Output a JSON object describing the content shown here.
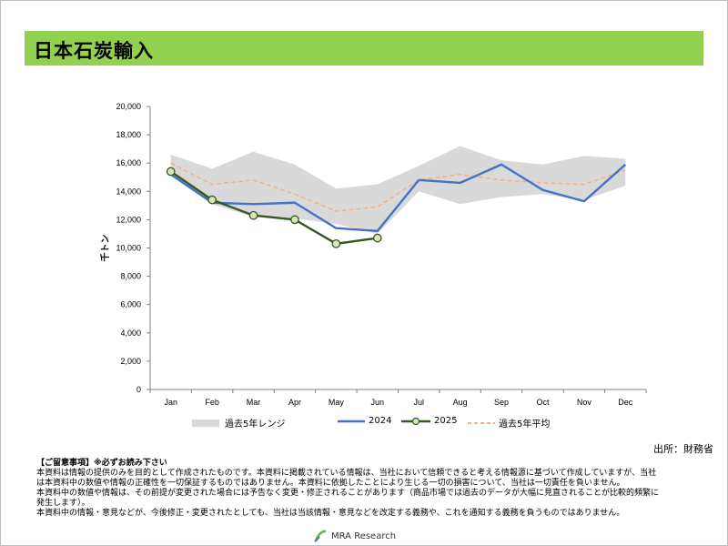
{
  "title": "日本石炭輸入",
  "source": "出所：財務省",
  "chart_data": {
    "type": "line",
    "categories": [
      "Jan",
      "Feb",
      "Mar",
      "Apr",
      "May",
      "Jun",
      "Jul",
      "Aug",
      "Sep",
      "Oct",
      "Nov",
      "Dec"
    ],
    "ylabel": "千トン",
    "ylim": [
      0,
      20000
    ],
    "yticks": [
      "0",
      "2,000",
      "4,000",
      "6,000",
      "8,000",
      "10,000",
      "12,000",
      "14,000",
      "16,000",
      "18,000",
      "20,000"
    ],
    "range_band": {
      "name": "過去5年レンジ",
      "color": "#d9d9d9",
      "min": [
        15100,
        13100,
        12200,
        12100,
        11700,
        11000,
        14000,
        13100,
        13600,
        13800,
        13400,
        14400
      ],
      "max": [
        16600,
        15600,
        16800,
        15900,
        14200,
        14500,
        15800,
        17200,
        16200,
        15900,
        16500,
        16300
      ]
    },
    "series": [
      {
        "name": "2024",
        "color": "#4472c4",
        "style": "solid",
        "values": [
          15200,
          13200,
          13100,
          13200,
          11400,
          11200,
          14800,
          14600,
          15900,
          14100,
          13300,
          15900
        ]
      },
      {
        "name": "2025",
        "color": "#375623",
        "style": "solid-marker",
        "values": [
          15400,
          13400,
          12300,
          12000,
          10300,
          10700,
          null,
          null,
          null,
          null,
          null,
          null
        ]
      },
      {
        "name": "過去5年平均",
        "color": "#f4b183",
        "style": "dashed",
        "values": [
          16000,
          14500,
          14800,
          13800,
          12600,
          12900,
          14800,
          15200,
          14800,
          14600,
          14500,
          15500
        ]
      }
    ],
    "legend_position": "bottom"
  },
  "disclaimer": {
    "heading": "【ご留意事項】※必ずお読み下さい",
    "lines": [
      "本資料は情報の提供のみを目的として作成されたものです。本資料に掲載されている情報は、当社において信頼できると考える情報源に基づいて作成していますが、当社",
      "は本資料中の数値や情報の正確性を一切保証するものではありません。本資料に依拠したことにより生じる一切の損害について、当社は一切責任を負いません。",
      "本資料中の数値や情報は、その前提が変更された場合には予告なく変更・修正されることがあります（商品市場では過去のデータが大幅に見直されることが比較的頻繁に",
      "発生します）。",
      "本資料中の情報・意見などが、今後修正・変更されたとしても、当社は当該情報・意見などを改定する義務や、これを通知する義務を負うものではありません。"
    ]
  },
  "logo_text": "MRA Research"
}
